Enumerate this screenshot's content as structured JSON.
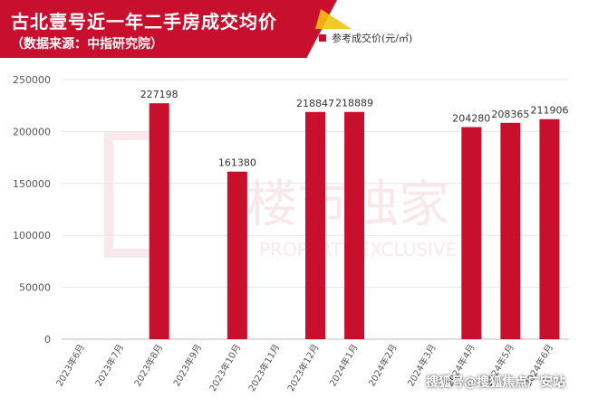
{
  "header": {
    "title": "古北壹号近一年二手房成交均价",
    "subtitle": "（数据来源：中指研究院）"
  },
  "colors": {
    "bar": "#c8102e",
    "title_bg": "#c8102e",
    "accent": "#f1c40f"
  },
  "watermarks": {
    "bg_brand": "楼市独家",
    "bg_brand_en": "PROPERTY EXCLUSIVE",
    "source_mark": "搜狐号@搜狐焦点广安站"
  },
  "chart_data": {
    "type": "bar",
    "categories": [
      "2023年6月",
      "2023年7月",
      "2023年8月",
      "2023年9月",
      "2023年10月",
      "2023年11月",
      "2023年12月",
      "2024年1月",
      "2024年2月",
      "2024年3月",
      "2024年4月",
      "2024年5月",
      "2024年6月"
    ],
    "series": [
      {
        "name": "参考成交价(元/㎡)",
        "values": [
          null,
          null,
          227198,
          null,
          161380,
          null,
          218847,
          218889,
          null,
          null,
          204280,
          208365,
          211906
        ]
      }
    ],
    "y_ticks": [
      "0",
      "50000",
      "100000",
      "150000",
      "200000",
      "250000"
    ],
    "ylim": [
      0,
      250000
    ],
    "grid": true,
    "legend_position": "top-right"
  }
}
